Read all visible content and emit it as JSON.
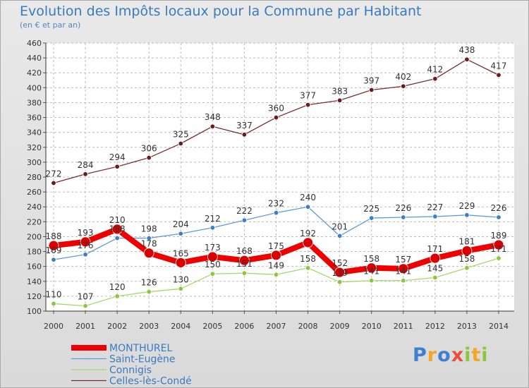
{
  "chart_data": {
    "type": "line",
    "title": "Evolution des Impôts locaux pour la Commune par Habitant",
    "subtitle": "(en € et par an)",
    "xlabel": "",
    "ylabel": "",
    "ylim": [
      100,
      460
    ],
    "yticks": [
      100,
      120,
      140,
      160,
      180,
      200,
      220,
      240,
      260,
      280,
      300,
      320,
      340,
      360,
      380,
      400,
      420,
      440,
      460
    ],
    "categories": [
      "2000",
      "2001",
      "2002",
      "2003",
      "2004",
      "2005",
      "2006",
      "2007",
      "2008",
      "2009",
      "2010",
      "2011",
      "2012",
      "2013",
      "2014"
    ],
    "grid": true,
    "legend": "bottom-left",
    "series": [
      {
        "name": "Celles-lès-Condé",
        "color": "#7a2e2e",
        "marker": "#6b1b1b",
        "width": 1.3,
        "radius": 3.3,
        "values": [
          272,
          284,
          294,
          306,
          325,
          348,
          337,
          360,
          377,
          383,
          397,
          402,
          412,
          438,
          417
        ],
        "labels": [
          "272",
          "284",
          "294",
          "306",
          "325",
          "348",
          "337",
          "360",
          "377",
          "383",
          "397",
          "402",
          "412",
          "438",
          "417"
        ]
      },
      {
        "name": "Saint-Eugène",
        "color": "#5e9bd6",
        "marker": "#3d7fc4",
        "width": 1.3,
        "radius": 3.3,
        "values": [
          169,
          176,
          198,
          198,
          204,
          212,
          222,
          232,
          240,
          201,
          225,
          226,
          227,
          229,
          226
        ],
        "labels": [
          "169",
          "176",
          "198",
          "198",
          "204",
          "212",
          "222",
          "232",
          "240",
          "201",
          "225",
          "226",
          "227",
          "229",
          "226"
        ]
      },
      {
        "name": "Connigis",
        "color": "#a6d96a",
        "marker": "#8cc63f",
        "width": 1.3,
        "radius": 3.3,
        "values": [
          110,
          107,
          120,
          126,
          130,
          150,
          151,
          149,
          158,
          139,
          141,
          141,
          145,
          158,
          171
        ],
        "labels": [
          "110",
          "107",
          "120",
          "126",
          "130",
          "150",
          "151",
          "149",
          "158",
          "139",
          "141",
          "141",
          "145",
          "158",
          "171"
        ]
      },
      {
        "name": "MONTHUREL",
        "color": "#ee0000",
        "marker": "#d80000",
        "width": 8,
        "radius": 7,
        "values": [
          188,
          193,
          210,
          178,
          165,
          173,
          168,
          175,
          192,
          152,
          158,
          157,
          171,
          181,
          189
        ],
        "labels": [
          "188",
          "193",
          "210",
          "178",
          "165",
          "173",
          "168",
          "175",
          "192",
          "152",
          "158",
          "157",
          "171",
          "181",
          "189"
        ]
      }
    ],
    "legend_entries": [
      "MONTHUREL",
      "Saint-Eugène",
      "Connigis",
      "Celles-lès-Condé"
    ]
  },
  "logo": {
    "p": "P",
    "r": "r",
    "o": "o",
    "x": "x",
    "i1": "i",
    "t": "t",
    "i2": "i"
  }
}
